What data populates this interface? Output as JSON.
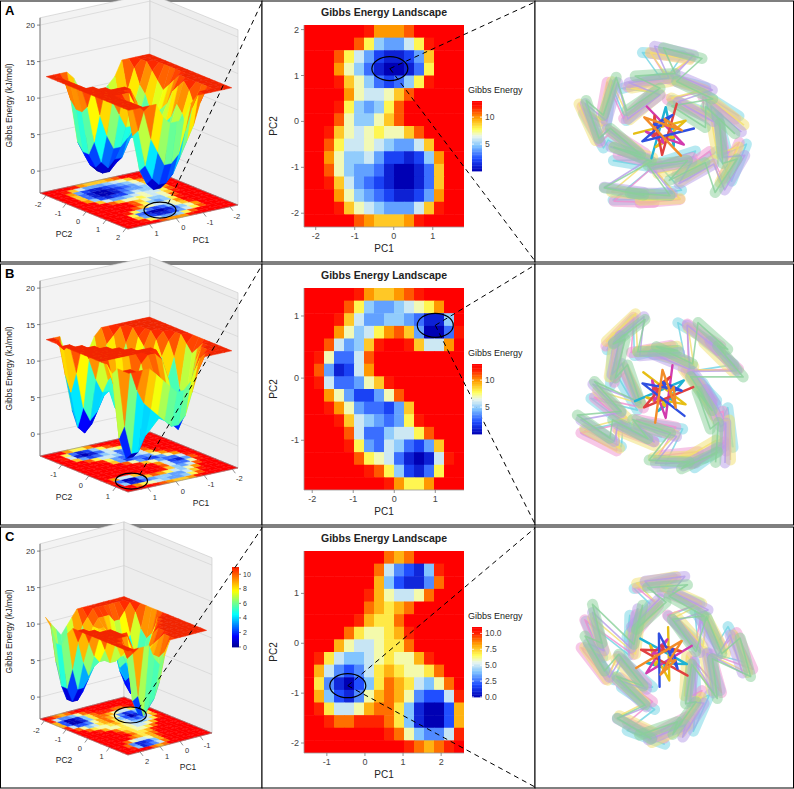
{
  "chart_data": [
    {
      "type": "heatmap",
      "label": "A",
      "title": "Gibbs Energy Landscape",
      "x_label": "PC1",
      "y_label": "PC2",
      "xlim": [
        -2.3,
        1.8
      ],
      "ylim": [
        -2.3,
        2.1
      ],
      "xticks": [
        -2,
        -1,
        0,
        1
      ],
      "yticks": [
        -2,
        -1,
        0,
        1,
        2
      ],
      "cells": [
        [
          13,
          13,
          13,
          13,
          13,
          13,
          12,
          10,
          10,
          10,
          11,
          13,
          13,
          13,
          13,
          13
        ],
        [
          13,
          13,
          13,
          13,
          13,
          11,
          8,
          5,
          4,
          4,
          6,
          8,
          12,
          13,
          13,
          13
        ],
        [
          13,
          13,
          13,
          11,
          8,
          6,
          4,
          2,
          1,
          1,
          2,
          4,
          9,
          13,
          13,
          13
        ],
        [
          13,
          13,
          13,
          10,
          7,
          5,
          3,
          1,
          0,
          0,
          1,
          3,
          8,
          13,
          13,
          13
        ],
        [
          13,
          13,
          13,
          12,
          9,
          7,
          5,
          3,
          2,
          3,
          5,
          8,
          12,
          13,
          13,
          13
        ],
        [
          13,
          13,
          13,
          13,
          10,
          7,
          6,
          6,
          7,
          9,
          11,
          13,
          13,
          13,
          13,
          13
        ],
        [
          13,
          13,
          13,
          12,
          8,
          5,
          4,
          5,
          8,
          11,
          13,
          13,
          13,
          13,
          13,
          13
        ],
        [
          13,
          13,
          13,
          11,
          7,
          5,
          5,
          7,
          9,
          11,
          13,
          13,
          13,
          13,
          13,
          13
        ],
        [
          13,
          13,
          12,
          9,
          7,
          6,
          7,
          8,
          7,
          7,
          9,
          11,
          13,
          13,
          13,
          13
        ],
        [
          13,
          13,
          11,
          8,
          6,
          6,
          7,
          6,
          5,
          4,
          4,
          6,
          9,
          13,
          13,
          13
        ],
        [
          13,
          13,
          10,
          7,
          5,
          5,
          6,
          4,
          2,
          2,
          1,
          2,
          5,
          10,
          13,
          13
        ],
        [
          13,
          13,
          11,
          7,
          5,
          4,
          4,
          3,
          1,
          0,
          0,
          1,
          3,
          9,
          13,
          13
        ],
        [
          13,
          13,
          12,
          9,
          6,
          4,
          3,
          2,
          1,
          0,
          0,
          1,
          3,
          9,
          13,
          13
        ],
        [
          13,
          13,
          13,
          10,
          7,
          5,
          4,
          3,
          2,
          1,
          1,
          2,
          4,
          10,
          13,
          13
        ],
        [
          13,
          13,
          13,
          12,
          9,
          7,
          6,
          5,
          4,
          4,
          4,
          6,
          9,
          12,
          13,
          13
        ],
        [
          13,
          13,
          13,
          13,
          13,
          11,
          10,
          9,
          9,
          9,
          10,
          12,
          13,
          13,
          13,
          13
        ]
      ],
      "colorbar": {
        "title": "Gibbs Energy",
        "range": [
          0,
          13
        ],
        "ticks": [
          5,
          10
        ]
      },
      "highlight": {
        "x": -0.1,
        "y": 1.15
      },
      "surface": {
        "z_label": "Gibbs Energy (kJ/mol)",
        "zlim": [
          -3,
          21
        ],
        "zticks": [
          0,
          5,
          10,
          15,
          20
        ]
      }
    },
    {
      "type": "heatmap",
      "label": "B",
      "title": "Gibbs Energy Landscape",
      "x_label": "PC1",
      "y_label": "PC2",
      "xlim": [
        -2.2,
        1.7
      ],
      "ylim": [
        -1.8,
        1.45
      ],
      "xticks": [
        -2,
        -1,
        0,
        1
      ],
      "yticks": [
        -1,
        0,
        1
      ],
      "cells": [
        [
          13,
          13,
          13,
          13,
          13,
          12,
          10,
          9,
          9,
          10,
          11,
          12,
          13,
          13,
          13,
          13
        ],
        [
          13,
          13,
          13,
          13,
          11,
          8,
          5,
          4,
          4,
          5,
          6,
          7,
          8,
          10,
          13,
          13
        ],
        [
          13,
          13,
          13,
          12,
          9,
          6,
          4,
          4,
          5,
          5,
          4,
          3,
          1,
          1,
          5,
          13
        ],
        [
          13,
          13,
          13,
          10,
          7,
          5,
          6,
          8,
          10,
          11,
          9,
          4,
          0,
          0,
          3,
          12
        ],
        [
          13,
          13,
          11,
          6,
          4,
          5,
          9,
          12,
          13,
          13,
          12,
          9,
          6,
          6,
          10,
          13
        ],
        [
          13,
          12,
          7,
          3,
          3,
          6,
          11,
          13,
          13,
          13,
          13,
          13,
          13,
          13,
          13,
          13
        ],
        [
          13,
          11,
          4,
          1,
          2,
          6,
          10,
          13,
          13,
          13,
          13,
          13,
          13,
          13,
          13,
          13
        ],
        [
          13,
          12,
          6,
          3,
          3,
          4,
          7,
          9,
          12,
          13,
          13,
          13,
          13,
          13,
          13,
          13
        ],
        [
          13,
          13,
          10,
          7,
          4,
          2,
          2,
          4,
          7,
          11,
          13,
          13,
          13,
          13,
          13,
          13
        ],
        [
          13,
          13,
          12,
          10,
          7,
          4,
          3,
          3,
          2,
          4,
          9,
          13,
          13,
          13,
          13,
          13
        ],
        [
          13,
          13,
          13,
          12,
          9,
          6,
          5,
          4,
          3,
          4,
          8,
          12,
          13,
          13,
          13,
          13
        ],
        [
          13,
          13,
          13,
          13,
          11,
          6,
          3,
          3,
          5,
          6,
          6,
          8,
          11,
          13,
          13,
          13
        ],
        [
          13,
          13,
          13,
          13,
          12,
          8,
          4,
          3,
          6,
          5,
          3,
          2,
          4,
          9,
          13,
          13
        ],
        [
          13,
          13,
          13,
          13,
          13,
          11,
          8,
          7,
          6,
          3,
          1,
          0,
          1,
          6,
          12,
          13
        ],
        [
          13,
          13,
          13,
          13,
          13,
          13,
          12,
          11,
          8,
          5,
          2,
          1,
          3,
          8,
          13,
          13
        ],
        [
          13,
          13,
          13,
          13,
          13,
          13,
          13,
          13,
          12,
          10,
          8,
          8,
          10,
          13,
          13,
          13
        ]
      ],
      "colorbar": {
        "title": "Gibbs Energy",
        "range": [
          0,
          13
        ],
        "ticks": [
          5,
          10
        ]
      },
      "highlight": {
        "x": 1.0,
        "y": 0.85
      },
      "surface": {
        "z_label": "Gibbs Energy (kJ/mol)",
        "zlim": [
          -3,
          21
        ],
        "zticks": [
          0,
          5,
          10,
          15,
          20
        ]
      }
    },
    {
      "type": "heatmap",
      "label": "C",
      "title": "Gibbs Energy Landscape",
      "x_label": "PC1",
      "y_label": "PC2",
      "xlim": [
        -1.6,
        2.6
      ],
      "ylim": [
        -2.2,
        1.85
      ],
      "xticks": [
        -1,
        0,
        1,
        2
      ],
      "yticks": [
        -2,
        -1,
        0,
        1
      ],
      "cells": [
        [
          11,
          11,
          11,
          11,
          11,
          11,
          11,
          11,
          9,
          8,
          9,
          11,
          11,
          11,
          11,
          11
        ],
        [
          11,
          11,
          11,
          11,
          11,
          11,
          11,
          9,
          5,
          3,
          2,
          1,
          4,
          10,
          11,
          11
        ],
        [
          11,
          11,
          11,
          11,
          11,
          11,
          11,
          8,
          4,
          2,
          1,
          1,
          3,
          9,
          11,
          11
        ],
        [
          11,
          11,
          11,
          11,
          11,
          11,
          10,
          8,
          6,
          5,
          5,
          6,
          9,
          11,
          11,
          11
        ],
        [
          11,
          11,
          11,
          11,
          11,
          11,
          9,
          8,
          7,
          8,
          9,
          11,
          11,
          11,
          11,
          11
        ],
        [
          11,
          11,
          11,
          11,
          11,
          10,
          8,
          7,
          7,
          9,
          11,
          11,
          11,
          11,
          11,
          11
        ],
        [
          11,
          11,
          11,
          11,
          9,
          7,
          6,
          6,
          7,
          8,
          10,
          11,
          11,
          11,
          11,
          11
        ],
        [
          11,
          11,
          11,
          8,
          6,
          5,
          5,
          6,
          7,
          7,
          9,
          11,
          11,
          11,
          11,
          11
        ],
        [
          11,
          10,
          7,
          5,
          4,
          4,
          5,
          6,
          7,
          6,
          6,
          8,
          10,
          11,
          11,
          11
        ],
        [
          11,
          8,
          5,
          3,
          2,
          3,
          5,
          7,
          8,
          7,
          6,
          6,
          7,
          9,
          11,
          11
        ],
        [
          11,
          7,
          3,
          1,
          0,
          2,
          4,
          7,
          9,
          8,
          7,
          5,
          4,
          6,
          9,
          11
        ],
        [
          11,
          8,
          4,
          2,
          1,
          3,
          6,
          8,
          9,
          8,
          6,
          3,
          2,
          2,
          5,
          10
        ],
        [
          11,
          10,
          7,
          5,
          5,
          6,
          8,
          9,
          9,
          7,
          4,
          1,
          0,
          0,
          2,
          8
        ],
        [
          11,
          11,
          10,
          9,
          9,
          10,
          10,
          10,
          9,
          7,
          4,
          1,
          0,
          0,
          2,
          8
        ],
        [
          11,
          11,
          11,
          11,
          11,
          11,
          11,
          11,
          10,
          9,
          6,
          4,
          3,
          3,
          5,
          10
        ],
        [
          11,
          11,
          11,
          11,
          11,
          11,
          11,
          11,
          11,
          11,
          10,
          9,
          8,
          9,
          10,
          11
        ]
      ],
      "colorbar": {
        "title": "Gibbs Energy",
        "range": [
          0,
          11
        ],
        "ticks": [
          {
            "value": 0,
            "label": "0.0"
          },
          {
            "value": 2.5,
            "label": "2.5"
          },
          {
            "value": 5,
            "label": "5.0"
          },
          {
            "value": 7.5,
            "label": "7.5"
          },
          {
            "value": 10,
            "label": "10.0"
          }
        ]
      },
      "highlight": {
        "x": -0.45,
        "y": -0.85
      },
      "surface": {
        "z_label": "Gibbs Energy (kJ/mol)",
        "zlim": [
          -3,
          21
        ],
        "zticks": [
          0,
          5,
          10,
          15,
          20
        ],
        "colorbar": {
          "range": [
            0,
            11
          ],
          "ticks": [
            0,
            2,
            4,
            6,
            8,
            10
          ]
        }
      }
    }
  ]
}
